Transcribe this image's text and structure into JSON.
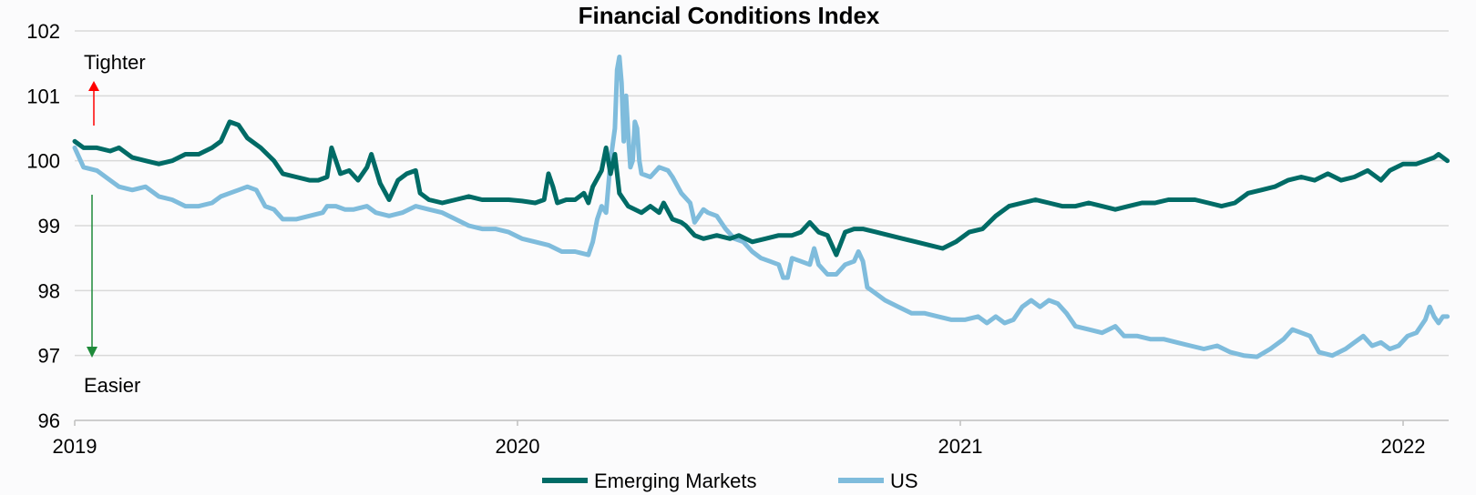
{
  "chart_data": {
    "type": "line",
    "title": "Financial Conditions Index",
    "xlabel": "",
    "ylabel": "",
    "ylim": [
      96,
      102
    ],
    "yticks": [
      "102",
      "101",
      "100",
      "99",
      "98",
      "97",
      "96"
    ],
    "xlim": [
      2019.0,
      2022.1
    ],
    "xticks": [
      {
        "value": 2019,
        "label": "2019"
      },
      {
        "value": 2020,
        "label": "2020"
      },
      {
        "value": 2021,
        "label": "2021"
      },
      {
        "value": 2022,
        "label": "2022"
      }
    ],
    "grid": true,
    "legend": "bottom",
    "annotations": {
      "tighter": {
        "label": "Tighter",
        "color": "#ff0000"
      },
      "easier": {
        "label": "Easier",
        "color": "#1e8a3a"
      }
    },
    "series": [
      {
        "name": "Emerging Markets",
        "color": "#006b66",
        "points": [
          [
            2019.0,
            100.3
          ],
          [
            2019.02,
            100.2
          ],
          [
            2019.05,
            100.2
          ],
          [
            2019.08,
            100.15
          ],
          [
            2019.1,
            100.2
          ],
          [
            2019.13,
            100.05
          ],
          [
            2019.16,
            100.0
          ],
          [
            2019.19,
            99.95
          ],
          [
            2019.22,
            100.0
          ],
          [
            2019.25,
            100.1
          ],
          [
            2019.28,
            100.1
          ],
          [
            2019.31,
            100.2
          ],
          [
            2019.33,
            100.3
          ],
          [
            2019.35,
            100.6
          ],
          [
            2019.37,
            100.55
          ],
          [
            2019.39,
            100.35
          ],
          [
            2019.42,
            100.2
          ],
          [
            2019.45,
            100.0
          ],
          [
            2019.47,
            99.8
          ],
          [
            2019.5,
            99.75
          ],
          [
            2019.53,
            99.7
          ],
          [
            2019.55,
            99.7
          ],
          [
            2019.57,
            99.75
          ],
          [
            2019.58,
            100.2
          ],
          [
            2019.6,
            99.8
          ],
          [
            2019.62,
            99.85
          ],
          [
            2019.64,
            99.7
          ],
          [
            2019.66,
            99.9
          ],
          [
            2019.67,
            100.1
          ],
          [
            2019.69,
            99.65
          ],
          [
            2019.71,
            99.4
          ],
          [
            2019.73,
            99.7
          ],
          [
            2019.75,
            99.8
          ],
          [
            2019.77,
            99.85
          ],
          [
            2019.78,
            99.5
          ],
          [
            2019.8,
            99.4
          ],
          [
            2019.83,
            99.35
          ],
          [
            2019.86,
            99.4
          ],
          [
            2019.89,
            99.45
          ],
          [
            2019.92,
            99.4
          ],
          [
            2019.95,
            99.4
          ],
          [
            2019.98,
            99.4
          ],
          [
            2020.01,
            99.38
          ],
          [
            2020.04,
            99.35
          ],
          [
            2020.06,
            99.4
          ],
          [
            2020.07,
            99.8
          ],
          [
            2020.08,
            99.6
          ],
          [
            2020.09,
            99.35
          ],
          [
            2020.11,
            99.4
          ],
          [
            2020.13,
            99.4
          ],
          [
            2020.15,
            99.5
          ],
          [
            2020.16,
            99.35
          ],
          [
            2020.17,
            99.6
          ],
          [
            2020.19,
            99.85
          ],
          [
            2020.2,
            100.2
          ],
          [
            2020.21,
            99.8
          ],
          [
            2020.22,
            100.1
          ],
          [
            2020.23,
            99.5
          ],
          [
            2020.25,
            99.3
          ],
          [
            2020.28,
            99.2
          ],
          [
            2020.3,
            99.3
          ],
          [
            2020.32,
            99.2
          ],
          [
            2020.33,
            99.35
          ],
          [
            2020.35,
            99.1
          ],
          [
            2020.37,
            99.05
          ],
          [
            2020.38,
            99.0
          ],
          [
            2020.4,
            98.85
          ],
          [
            2020.42,
            98.8
          ],
          [
            2020.45,
            98.85
          ],
          [
            2020.48,
            98.8
          ],
          [
            2020.5,
            98.85
          ],
          [
            2020.53,
            98.75
          ],
          [
            2020.56,
            98.8
          ],
          [
            2020.59,
            98.85
          ],
          [
            2020.62,
            98.85
          ],
          [
            2020.64,
            98.9
          ],
          [
            2020.66,
            99.05
          ],
          [
            2020.68,
            98.9
          ],
          [
            2020.7,
            98.85
          ],
          [
            2020.72,
            98.55
          ],
          [
            2020.74,
            98.9
          ],
          [
            2020.76,
            98.95
          ],
          [
            2020.78,
            98.95
          ],
          [
            2020.81,
            98.9
          ],
          [
            2020.84,
            98.85
          ],
          [
            2020.87,
            98.8
          ],
          [
            2020.9,
            98.75
          ],
          [
            2020.93,
            98.7
          ],
          [
            2020.96,
            98.65
          ],
          [
            2020.99,
            98.75
          ],
          [
            2021.02,
            98.9
          ],
          [
            2021.05,
            98.95
          ],
          [
            2021.08,
            99.15
          ],
          [
            2021.11,
            99.3
          ],
          [
            2021.14,
            99.35
          ],
          [
            2021.17,
            99.4
          ],
          [
            2021.2,
            99.35
          ],
          [
            2021.23,
            99.3
          ],
          [
            2021.26,
            99.3
          ],
          [
            2021.29,
            99.35
          ],
          [
            2021.32,
            99.3
          ],
          [
            2021.35,
            99.25
          ],
          [
            2021.38,
            99.3
          ],
          [
            2021.41,
            99.35
          ],
          [
            2021.44,
            99.35
          ],
          [
            2021.47,
            99.4
          ],
          [
            2021.5,
            99.4
          ],
          [
            2021.53,
            99.4
          ],
          [
            2021.56,
            99.35
          ],
          [
            2021.59,
            99.3
          ],
          [
            2021.62,
            99.35
          ],
          [
            2021.65,
            99.5
          ],
          [
            2021.68,
            99.55
          ],
          [
            2021.71,
            99.6
          ],
          [
            2021.74,
            99.7
          ],
          [
            2021.77,
            99.75
          ],
          [
            2021.8,
            99.7
          ],
          [
            2021.83,
            99.8
          ],
          [
            2021.86,
            99.7
          ],
          [
            2021.89,
            99.75
          ],
          [
            2021.92,
            99.85
          ],
          [
            2021.95,
            99.7
          ],
          [
            2021.97,
            99.85
          ],
          [
            2022.0,
            99.95
          ],
          [
            2022.03,
            99.95
          ],
          [
            2022.05,
            100.0
          ],
          [
            2022.07,
            100.05
          ],
          [
            2022.08,
            100.1
          ],
          [
            2022.1,
            100.0
          ]
        ]
      },
      {
        "name": "US",
        "color": "#7fbcdc",
        "points": [
          [
            2019.0,
            100.2
          ],
          [
            2019.02,
            99.9
          ],
          [
            2019.05,
            99.85
          ],
          [
            2019.08,
            99.7
          ],
          [
            2019.1,
            99.6
          ],
          [
            2019.13,
            99.55
          ],
          [
            2019.16,
            99.6
          ],
          [
            2019.19,
            99.45
          ],
          [
            2019.22,
            99.4
          ],
          [
            2019.25,
            99.3
          ],
          [
            2019.28,
            99.3
          ],
          [
            2019.31,
            99.35
          ],
          [
            2019.33,
            99.45
          ],
          [
            2019.35,
            99.5
          ],
          [
            2019.37,
            99.55
          ],
          [
            2019.39,
            99.6
          ],
          [
            2019.41,
            99.55
          ],
          [
            2019.43,
            99.3
          ],
          [
            2019.45,
            99.25
          ],
          [
            2019.47,
            99.1
          ],
          [
            2019.5,
            99.1
          ],
          [
            2019.53,
            99.15
          ],
          [
            2019.56,
            99.2
          ],
          [
            2019.57,
            99.3
          ],
          [
            2019.59,
            99.3
          ],
          [
            2019.61,
            99.25
          ],
          [
            2019.63,
            99.25
          ],
          [
            2019.66,
            99.3
          ],
          [
            2019.68,
            99.2
          ],
          [
            2019.71,
            99.15
          ],
          [
            2019.74,
            99.2
          ],
          [
            2019.77,
            99.3
          ],
          [
            2019.8,
            99.25
          ],
          [
            2019.83,
            99.2
          ],
          [
            2019.86,
            99.1
          ],
          [
            2019.89,
            99.0
          ],
          [
            2019.92,
            98.95
          ],
          [
            2019.95,
            98.95
          ],
          [
            2019.98,
            98.9
          ],
          [
            2020.01,
            98.8
          ],
          [
            2020.04,
            98.75
          ],
          [
            2020.07,
            98.7
          ],
          [
            2020.1,
            98.6
          ],
          [
            2020.13,
            98.6
          ],
          [
            2020.16,
            98.55
          ],
          [
            2020.17,
            98.75
          ],
          [
            2020.18,
            99.1
          ],
          [
            2020.19,
            99.3
          ],
          [
            2020.2,
            99.2
          ],
          [
            2020.21,
            100.0
          ],
          [
            2020.22,
            100.5
          ],
          [
            2020.225,
            101.4
          ],
          [
            2020.23,
            101.6
          ],
          [
            2020.235,
            101.2
          ],
          [
            2020.24,
            100.3
          ],
          [
            2020.245,
            101.0
          ],
          [
            2020.25,
            100.4
          ],
          [
            2020.255,
            99.9
          ],
          [
            2020.26,
            100.0
          ],
          [
            2020.265,
            100.6
          ],
          [
            2020.27,
            100.5
          ],
          [
            2020.275,
            100.0
          ],
          [
            2020.28,
            99.8
          ],
          [
            2020.3,
            99.75
          ],
          [
            2020.32,
            99.9
          ],
          [
            2020.34,
            99.85
          ],
          [
            2020.35,
            99.75
          ],
          [
            2020.37,
            99.5
          ],
          [
            2020.39,
            99.35
          ],
          [
            2020.4,
            99.05
          ],
          [
            2020.42,
            99.25
          ],
          [
            2020.43,
            99.2
          ],
          [
            2020.45,
            99.15
          ],
          [
            2020.47,
            98.95
          ],
          [
            2020.49,
            98.8
          ],
          [
            2020.51,
            98.75
          ],
          [
            2020.53,
            98.6
          ],
          [
            2020.55,
            98.5
          ],
          [
            2020.57,
            98.45
          ],
          [
            2020.59,
            98.4
          ],
          [
            2020.6,
            98.2
          ],
          [
            2020.61,
            98.2
          ],
          [
            2020.62,
            98.5
          ],
          [
            2020.64,
            98.45
          ],
          [
            2020.66,
            98.4
          ],
          [
            2020.67,
            98.65
          ],
          [
            2020.68,
            98.4
          ],
          [
            2020.7,
            98.25
          ],
          [
            2020.72,
            98.25
          ],
          [
            2020.74,
            98.4
          ],
          [
            2020.76,
            98.45
          ],
          [
            2020.77,
            98.6
          ],
          [
            2020.78,
            98.45
          ],
          [
            2020.79,
            98.05
          ],
          [
            2020.8,
            98.0
          ],
          [
            2020.83,
            97.85
          ],
          [
            2020.86,
            97.75
          ],
          [
            2020.89,
            97.65
          ],
          [
            2020.92,
            97.65
          ],
          [
            2020.95,
            97.6
          ],
          [
            2020.98,
            97.55
          ],
          [
            2021.01,
            97.55
          ],
          [
            2021.04,
            97.6
          ],
          [
            2021.06,
            97.5
          ],
          [
            2021.08,
            97.6
          ],
          [
            2021.1,
            97.5
          ],
          [
            2021.12,
            97.55
          ],
          [
            2021.14,
            97.75
          ],
          [
            2021.16,
            97.85
          ],
          [
            2021.18,
            97.75
          ],
          [
            2021.2,
            97.85
          ],
          [
            2021.22,
            97.8
          ],
          [
            2021.24,
            97.65
          ],
          [
            2021.26,
            97.45
          ],
          [
            2021.29,
            97.4
          ],
          [
            2021.32,
            97.35
          ],
          [
            2021.35,
            97.45
          ],
          [
            2021.37,
            97.3
          ],
          [
            2021.4,
            97.3
          ],
          [
            2021.43,
            97.25
          ],
          [
            2021.46,
            97.25
          ],
          [
            2021.49,
            97.2
          ],
          [
            2021.52,
            97.15
          ],
          [
            2021.55,
            97.1
          ],
          [
            2021.58,
            97.15
          ],
          [
            2021.61,
            97.05
          ],
          [
            2021.64,
            97.0
          ],
          [
            2021.67,
            96.98
          ],
          [
            2021.7,
            97.1
          ],
          [
            2021.73,
            97.25
          ],
          [
            2021.75,
            97.4
          ],
          [
            2021.77,
            97.35
          ],
          [
            2021.79,
            97.3
          ],
          [
            2021.81,
            97.05
          ],
          [
            2021.84,
            97.0
          ],
          [
            2021.87,
            97.1
          ],
          [
            2021.89,
            97.2
          ],
          [
            2021.91,
            97.3
          ],
          [
            2021.93,
            97.15
          ],
          [
            2021.95,
            97.2
          ],
          [
            2021.97,
            97.1
          ],
          [
            2021.99,
            97.15
          ],
          [
            2022.01,
            97.3
          ],
          [
            2022.03,
            97.35
          ],
          [
            2022.05,
            97.55
          ],
          [
            2022.06,
            97.75
          ],
          [
            2022.07,
            97.6
          ],
          [
            2022.08,
            97.5
          ],
          [
            2022.09,
            97.6
          ],
          [
            2022.1,
            97.6
          ]
        ]
      }
    ]
  }
}
